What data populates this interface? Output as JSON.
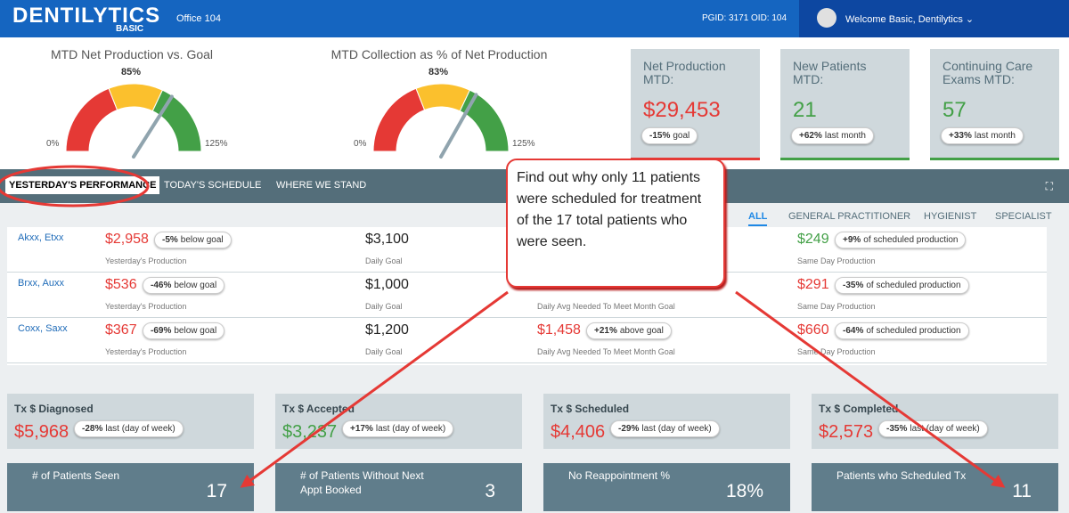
{
  "header": {
    "logo": "DENTILYTICS",
    "logo_sub": "BASIC",
    "office": "Office 104",
    "ids": "PGID: 3171 OID: 104",
    "welcome": "Welcome Basic, Dentilytics ⌄"
  },
  "gauges": [
    {
      "title": "MTD Net Production vs. Goal",
      "value": {
        "value": 85,
        "label": "85%"
      },
      "min": {
        "value": 0,
        "label": "0%"
      },
      "max": {
        "value": 125,
        "label": "125%"
      }
    },
    {
      "title": "MTD Collection as % of Net Production",
      "value": {
        "value": 83,
        "label": "83%"
      },
      "min": {
        "value": 0,
        "label": "0%"
      },
      "max": {
        "value": 125,
        "label": "125%"
      }
    }
  ],
  "kpis": [
    {
      "title": "Net Production MTD:",
      "value": "$29,453",
      "color": "#e53935",
      "badge": {
        "strong": "-15%",
        "text": "goal"
      }
    },
    {
      "title": "New Patients MTD:",
      "value": "21",
      "color": "#43a047",
      "badge": {
        "strong": "+62%",
        "text": "last month"
      }
    },
    {
      "title": "Continuing Care Exams MTD:",
      "value": "57",
      "color": "#43a047",
      "badge": {
        "strong": "+33%",
        "text": "last month"
      }
    }
  ],
  "tabs": [
    "YESTERDAY'S PERFORMANCE",
    "TODAY'S SCHEDULE",
    "WHERE WE STAND"
  ],
  "filters": [
    "ALL",
    "GENERAL PRACTITIONER",
    "HYGIENIST",
    "SPECIALIST"
  ],
  "rows": [
    {
      "name": "Akxx, Etxx",
      "production": {
        "value": "$2,958",
        "color": "#e53935",
        "badge": {
          "strong": "-5%",
          "text": "below goal"
        },
        "caption": "Yesterday's Production"
      },
      "goal": {
        "value": "$3,100",
        "caption": "Daily Goal"
      },
      "same_day": {
        "value": "$249",
        "color": "#43a047",
        "badge": {
          "strong": "+9%",
          "text": "of scheduled production"
        },
        "caption": "Same Day Production"
      }
    },
    {
      "name": "Brxx, Auxx",
      "production": {
        "value": "$536",
        "color": "#e53935",
        "badge": {
          "strong": "-46%",
          "text": "below goal"
        },
        "caption": "Yesterday's Production"
      },
      "goal": {
        "value": "$1,000",
        "caption": "Daily Goal"
      },
      "avg": {
        "caption": "Daily Avg Needed To Meet Month Goal"
      },
      "same_day": {
        "value": "$291",
        "color": "#e53935",
        "badge": {
          "strong": "-35%",
          "text": "of scheduled production"
        },
        "caption": "Same Day Production"
      }
    },
    {
      "name": "Coxx, Saxx",
      "production": {
        "value": "$367",
        "color": "#e53935",
        "badge": {
          "strong": "-69%",
          "text": "below goal"
        },
        "caption": "Yesterday's Production"
      },
      "goal": {
        "value": "$1,200",
        "caption": "Daily Goal"
      },
      "avg": {
        "value": "$1,458",
        "color": "#e53935",
        "badge": {
          "strong": "+21%",
          "text": "above goal"
        },
        "caption": "Daily Avg Needed To Meet Month Goal"
      },
      "same_day": {
        "value": "$660",
        "color": "#e53935",
        "badge": {
          "strong": "-64%",
          "text": "of scheduled production"
        },
        "caption": "Same Day Production"
      }
    }
  ],
  "tx_cards": [
    {
      "title": "Tx $ Diagnosed",
      "value": "$5,968",
      "color": "#e53935",
      "badge": {
        "strong": "-28%",
        "text": "last (day of week)"
      }
    },
    {
      "title": "Tx $ Accepted",
      "value": "$3,237",
      "color": "#43a047",
      "badge": {
        "strong": "+17%",
        "text": "last (day of week)"
      }
    },
    {
      "title": "Tx $ Scheduled",
      "value": "$4,406",
      "color": "#e53935",
      "badge": {
        "strong": "-29%",
        "text": "last (day of week)"
      }
    },
    {
      "title": "Tx $ Completed",
      "value": "$2,573",
      "color": "#e53935",
      "badge": {
        "strong": "-35%",
        "text": "last (day of week)"
      }
    }
  ],
  "patient_cards": [
    {
      "title": "# of Patients Seen",
      "value": "17"
    },
    {
      "title": "# of Patients Without Next Appt Booked",
      "value": "3"
    },
    {
      "title": "No Reappointment %",
      "value": "18%"
    },
    {
      "title": "Patients who Scheduled Tx",
      "value": "11"
    }
  ],
  "callout": "Find out why only 11 patients were scheduled for treatment of the 17 total patients who were seen."
}
